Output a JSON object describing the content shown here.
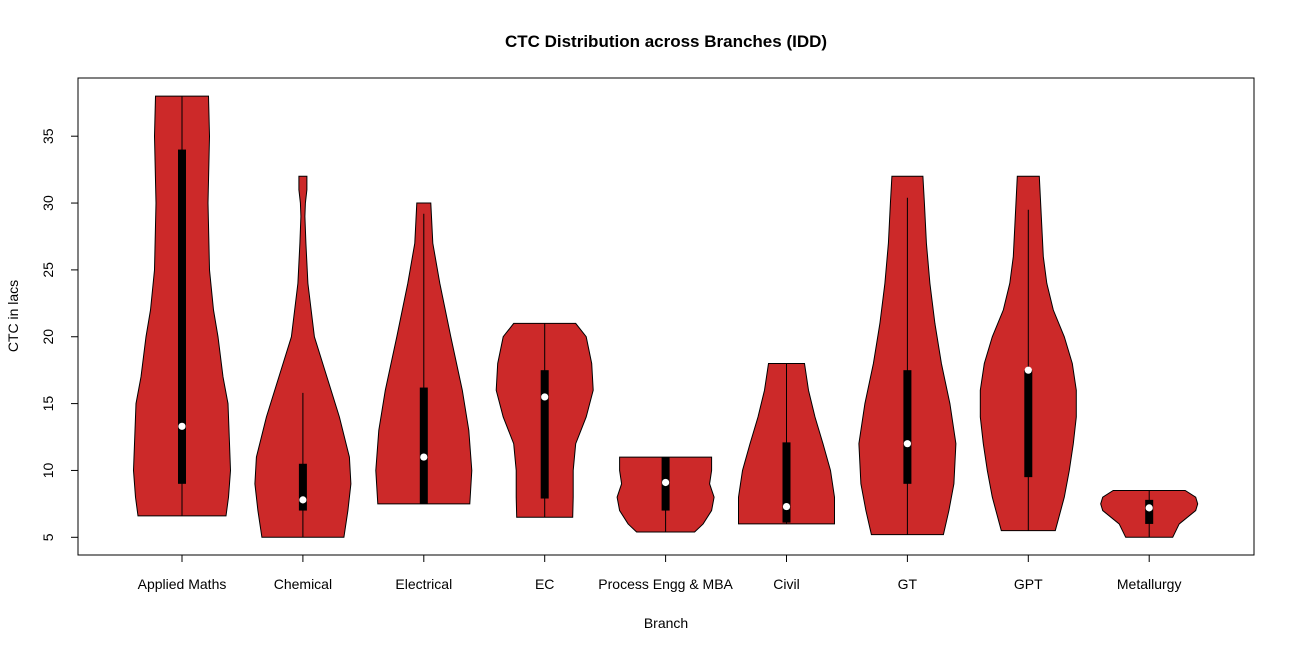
{
  "chart_data": {
    "type": "violin",
    "title": "CTC Distribution across Branches (IDD)",
    "xlabel": "Branch",
    "ylabel": "CTC in lacs",
    "ylim": [
      3.7,
      39.1
    ],
    "yticks": [
      5,
      10,
      15,
      20,
      25,
      30,
      35
    ],
    "grid": false,
    "fill_color": "#cc2929",
    "box_color": "#000000",
    "median_color": "#ffffff",
    "categories": [
      "Applied Maths",
      "Chemical",
      "Electrical",
      "EC",
      "Process Engg & MBA",
      "Civil",
      "GT",
      "GPT",
      "Metallurgy"
    ],
    "series": [
      {
        "category": "Applied Maths",
        "min": 6.6,
        "max": 38,
        "whisker_low": 6.6,
        "whisker_high": 38,
        "q1": 9,
        "q3": 34,
        "median": 13.3,
        "density": [
          [
            6.6,
            0.88
          ],
          [
            8,
            0.93
          ],
          [
            10,
            0.97
          ],
          [
            12,
            0.95
          ],
          [
            15,
            0.92
          ],
          [
            17,
            0.82
          ],
          [
            20,
            0.72
          ],
          [
            22,
            0.63
          ],
          [
            25,
            0.55
          ],
          [
            30,
            0.52
          ],
          [
            35,
            0.55
          ],
          [
            38,
            0.53
          ]
        ]
      },
      {
        "category": "Chemical",
        "min": 5,
        "max": 32,
        "whisker_low": 5,
        "whisker_high": 15.8,
        "q1": 7,
        "q3": 10.5,
        "median": 7.8,
        "density": [
          [
            5,
            0.82
          ],
          [
            7,
            0.9
          ],
          [
            9,
            0.96
          ],
          [
            11,
            0.93
          ],
          [
            14,
            0.73
          ],
          [
            17,
            0.48
          ],
          [
            20,
            0.23
          ],
          [
            24,
            0.1
          ],
          [
            27,
            0.06
          ],
          [
            29,
            0.04
          ],
          [
            30,
            0.05
          ],
          [
            31,
            0.08
          ],
          [
            32,
            0.08
          ]
        ]
      },
      {
        "category": "Electrical",
        "min": 7.5,
        "max": 30,
        "whisker_low": 7.5,
        "whisker_high": 29.2,
        "q1": 7.5,
        "q3": 16.2,
        "median": 11,
        "density": [
          [
            7.5,
            0.92
          ],
          [
            10,
            0.96
          ],
          [
            13,
            0.9
          ],
          [
            16,
            0.77
          ],
          [
            20,
            0.54
          ],
          [
            24,
            0.32
          ],
          [
            27,
            0.18
          ],
          [
            30,
            0.14
          ]
        ]
      },
      {
        "category": "EC",
        "min": 6.5,
        "max": 21,
        "whisker_low": 6.5,
        "whisker_high": 21,
        "q1": 7.9,
        "q3": 17.5,
        "median": 15.5,
        "density": [
          [
            6.5,
            0.56
          ],
          [
            8,
            0.57
          ],
          [
            10,
            0.57
          ],
          [
            12,
            0.62
          ],
          [
            14,
            0.83
          ],
          [
            16,
            0.97
          ],
          [
            18,
            0.94
          ],
          [
            20,
            0.83
          ],
          [
            21,
            0.62
          ]
        ]
      },
      {
        "category": "Process Engg & MBA",
        "min": 5.4,
        "max": 11,
        "whisker_low": 5.4,
        "whisker_high": 11,
        "q1": 7,
        "q3": 11,
        "median": 9.1,
        "density": [
          [
            5.4,
            0.58
          ],
          [
            6,
            0.75
          ],
          [
            7,
            0.92
          ],
          [
            8,
            0.97
          ],
          [
            9,
            0.88
          ],
          [
            10,
            0.92
          ],
          [
            11,
            0.92
          ]
        ]
      },
      {
        "category": "Civil",
        "min": 6,
        "max": 18,
        "whisker_low": 6,
        "whisker_high": 18,
        "q1": 6.1,
        "q3": 12.1,
        "median": 7.3,
        "density": [
          [
            6,
            0.96
          ],
          [
            8,
            0.96
          ],
          [
            10,
            0.88
          ],
          [
            12,
            0.73
          ],
          [
            14,
            0.57
          ],
          [
            16,
            0.44
          ],
          [
            18,
            0.36
          ]
        ]
      },
      {
        "category": "GT",
        "min": 5.2,
        "max": 32,
        "whisker_low": 5.2,
        "whisker_high": 30.4,
        "q1": 9,
        "q3": 17.5,
        "median": 12,
        "density": [
          [
            5.2,
            0.72
          ],
          [
            7,
            0.83
          ],
          [
            9,
            0.93
          ],
          [
            12,
            0.97
          ],
          [
            15,
            0.85
          ],
          [
            18,
            0.68
          ],
          [
            21,
            0.55
          ],
          [
            24,
            0.45
          ],
          [
            27,
            0.38
          ],
          [
            30,
            0.34
          ],
          [
            32,
            0.31
          ]
        ]
      },
      {
        "category": "GPT",
        "min": 5.5,
        "max": 32,
        "whisker_low": 5.5,
        "whisker_high": 29.5,
        "q1": 9.5,
        "q3": 17.5,
        "median": 17.5,
        "density": [
          [
            5.5,
            0.54
          ],
          [
            8,
            0.72
          ],
          [
            10,
            0.82
          ],
          [
            12,
            0.9
          ],
          [
            14,
            0.96
          ],
          [
            16,
            0.96
          ],
          [
            18,
            0.88
          ],
          [
            20,
            0.72
          ],
          [
            22,
            0.5
          ],
          [
            24,
            0.37
          ],
          [
            26,
            0.3
          ],
          [
            29,
            0.26
          ],
          [
            32,
            0.22
          ]
        ]
      },
      {
        "category": "Metallurgy",
        "min": 5,
        "max": 8.5,
        "whisker_low": 5,
        "whisker_high": 8.5,
        "q1": 6,
        "q3": 7.8,
        "median": 7.2,
        "density": [
          [
            5,
            0.47
          ],
          [
            6,
            0.6
          ],
          [
            7,
            0.93
          ],
          [
            7.5,
            0.97
          ],
          [
            8,
            0.93
          ],
          [
            8.5,
            0.72
          ]
        ]
      }
    ]
  }
}
